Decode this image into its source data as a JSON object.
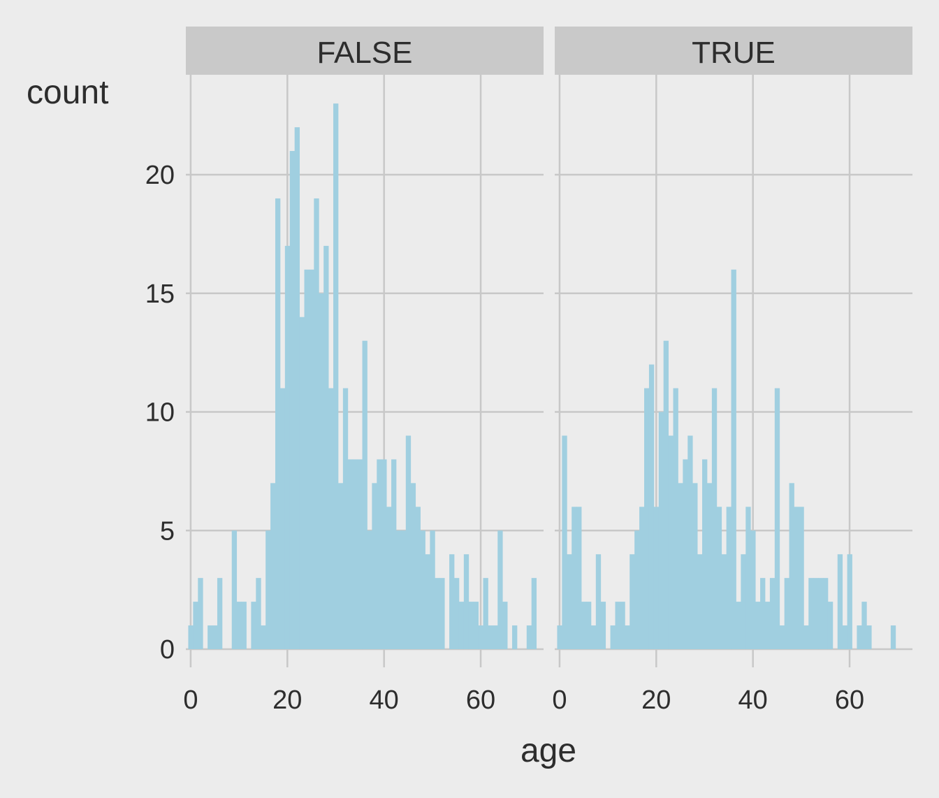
{
  "chart_data": {
    "type": "bar",
    "subtype": "faceted histogram",
    "xlabel": "age",
    "ylabel": "count",
    "xlim": [
      -1,
      73
    ],
    "ylim": [
      0,
      23
    ],
    "x_ticks": [
      0,
      20,
      40,
      60
    ],
    "y_ticks": [
      0,
      5,
      10,
      15,
      20
    ],
    "bin_width": 1,
    "bar_color": "#a0cfe0",
    "grid": true,
    "panels": [
      {
        "name": "FALSE",
        "bins": [
          {
            "x": 0,
            "y": 1
          },
          {
            "x": 1,
            "y": 2
          },
          {
            "x": 2,
            "y": 3
          },
          {
            "x": 3,
            "y": 0
          },
          {
            "x": 4,
            "y": 1
          },
          {
            "x": 5,
            "y": 1
          },
          {
            "x": 6,
            "y": 3
          },
          {
            "x": 7,
            "y": 0
          },
          {
            "x": 8,
            "y": 0
          },
          {
            "x": 9,
            "y": 5
          },
          {
            "x": 10,
            "y": 2
          },
          {
            "x": 11,
            "y": 2
          },
          {
            "x": 12,
            "y": 0
          },
          {
            "x": 13,
            "y": 2
          },
          {
            "x": 14,
            "y": 3
          },
          {
            "x": 15,
            "y": 1
          },
          {
            "x": 16,
            "y": 5
          },
          {
            "x": 17,
            "y": 7
          },
          {
            "x": 18,
            "y": 19
          },
          {
            "x": 19,
            "y": 11
          },
          {
            "x": 20,
            "y": 17
          },
          {
            "x": 21,
            "y": 21
          },
          {
            "x": 22,
            "y": 22
          },
          {
            "x": 23,
            "y": 14
          },
          {
            "x": 24,
            "y": 16
          },
          {
            "x": 25,
            "y": 16
          },
          {
            "x": 26,
            "y": 19
          },
          {
            "x": 27,
            "y": 15
          },
          {
            "x": 28,
            "y": 17
          },
          {
            "x": 29,
            "y": 11
          },
          {
            "x": 30,
            "y": 23
          },
          {
            "x": 31,
            "y": 7
          },
          {
            "x": 32,
            "y": 11
          },
          {
            "x": 33,
            "y": 8
          },
          {
            "x": 34,
            "y": 8
          },
          {
            "x": 35,
            "y": 8
          },
          {
            "x": 36,
            "y": 13
          },
          {
            "x": 37,
            "y": 5
          },
          {
            "x": 38,
            "y": 7
          },
          {
            "x": 39,
            "y": 8
          },
          {
            "x": 40,
            "y": 8
          },
          {
            "x": 41,
            "y": 6
          },
          {
            "x": 42,
            "y": 8
          },
          {
            "x": 43,
            "y": 5
          },
          {
            "x": 44,
            "y": 5
          },
          {
            "x": 45,
            "y": 9
          },
          {
            "x": 46,
            "y": 7
          },
          {
            "x": 47,
            "y": 6
          },
          {
            "x": 48,
            "y": 5
          },
          {
            "x": 49,
            "y": 4
          },
          {
            "x": 50,
            "y": 5
          },
          {
            "x": 51,
            "y": 3
          },
          {
            "x": 52,
            "y": 3
          },
          {
            "x": 53,
            "y": 0
          },
          {
            "x": 54,
            "y": 4
          },
          {
            "x": 55,
            "y": 3
          },
          {
            "x": 56,
            "y": 2
          },
          {
            "x": 57,
            "y": 4
          },
          {
            "x": 58,
            "y": 2
          },
          {
            "x": 59,
            "y": 2
          },
          {
            "x": 60,
            "y": 1
          },
          {
            "x": 61,
            "y": 3
          },
          {
            "x": 62,
            "y": 1
          },
          {
            "x": 63,
            "y": 1
          },
          {
            "x": 64,
            "y": 5
          },
          {
            "x": 65,
            "y": 2
          },
          {
            "x": 66,
            "y": 0
          },
          {
            "x": 67,
            "y": 1
          },
          {
            "x": 68,
            "y": 0
          },
          {
            "x": 69,
            "y": 0
          },
          {
            "x": 70,
            "y": 1
          },
          {
            "x": 71,
            "y": 3
          }
        ]
      },
      {
        "name": "TRUE",
        "bins": [
          {
            "x": 0,
            "y": 1
          },
          {
            "x": 1,
            "y": 9
          },
          {
            "x": 2,
            "y": 4
          },
          {
            "x": 3,
            "y": 6
          },
          {
            "x": 4,
            "y": 6
          },
          {
            "x": 5,
            "y": 2
          },
          {
            "x": 6,
            "y": 2
          },
          {
            "x": 7,
            "y": 1
          },
          {
            "x": 8,
            "y": 4
          },
          {
            "x": 9,
            "y": 2
          },
          {
            "x": 10,
            "y": 0
          },
          {
            "x": 11,
            "y": 1
          },
          {
            "x": 12,
            "y": 2
          },
          {
            "x": 13,
            "y": 2
          },
          {
            "x": 14,
            "y": 1
          },
          {
            "x": 15,
            "y": 4
          },
          {
            "x": 16,
            "y": 5
          },
          {
            "x": 17,
            "y": 6
          },
          {
            "x": 18,
            "y": 11
          },
          {
            "x": 19,
            "y": 12
          },
          {
            "x": 20,
            "y": 6
          },
          {
            "x": 21,
            "y": 10
          },
          {
            "x": 22,
            "y": 13
          },
          {
            "x": 23,
            "y": 9
          },
          {
            "x": 24,
            "y": 11
          },
          {
            "x": 25,
            "y": 7
          },
          {
            "x": 26,
            "y": 8
          },
          {
            "x": 27,
            "y": 9
          },
          {
            "x": 28,
            "y": 7
          },
          {
            "x": 29,
            "y": 4
          },
          {
            "x": 30,
            "y": 8
          },
          {
            "x": 31,
            "y": 7
          },
          {
            "x": 32,
            "y": 11
          },
          {
            "x": 33,
            "y": 6
          },
          {
            "x": 34,
            "y": 4
          },
          {
            "x": 35,
            "y": 6
          },
          {
            "x": 36,
            "y": 16
          },
          {
            "x": 37,
            "y": 2
          },
          {
            "x": 38,
            "y": 4
          },
          {
            "x": 39,
            "y": 6
          },
          {
            "x": 40,
            "y": 5
          },
          {
            "x": 41,
            "y": 2
          },
          {
            "x": 42,
            "y": 3
          },
          {
            "x": 43,
            "y": 2
          },
          {
            "x": 44,
            "y": 3
          },
          {
            "x": 45,
            "y": 11
          },
          {
            "x": 46,
            "y": 1
          },
          {
            "x": 47,
            "y": 3
          },
          {
            "x": 48,
            "y": 7
          },
          {
            "x": 49,
            "y": 6
          },
          {
            "x": 50,
            "y": 6
          },
          {
            "x": 51,
            "y": 1
          },
          {
            "x": 52,
            "y": 3
          },
          {
            "x": 53,
            "y": 3
          },
          {
            "x": 54,
            "y": 3
          },
          {
            "x": 55,
            "y": 3
          },
          {
            "x": 56,
            "y": 2
          },
          {
            "x": 57,
            "y": 0
          },
          {
            "x": 58,
            "y": 4
          },
          {
            "x": 59,
            "y": 1
          },
          {
            "x": 60,
            "y": 4
          },
          {
            "x": 61,
            "y": 0
          },
          {
            "x": 62,
            "y": 1
          },
          {
            "x": 63,
            "y": 2
          },
          {
            "x": 64,
            "y": 1
          },
          {
            "x": 65,
            "y": 0
          },
          {
            "x": 66,
            "y": 0
          },
          {
            "x": 67,
            "y": 0
          },
          {
            "x": 68,
            "y": 0
          },
          {
            "x": 69,
            "y": 1
          }
        ]
      }
    ]
  },
  "colors": {
    "background": "#ececec",
    "panel_background": "#ececec",
    "strip_background": "#c9c9c9",
    "grid": "#c8c8c8",
    "text": "#2d2d2d",
    "bar": "#a0cfe0"
  }
}
